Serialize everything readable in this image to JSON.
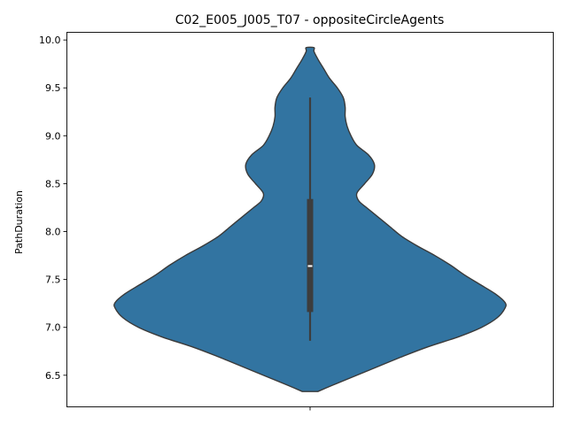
{
  "chart_data": {
    "type": "violin",
    "title": "C02_E005_J005_T07 - oppositeCircleAgents",
    "xlabel": "",
    "ylabel": "PathDuration",
    "ylim": [
      6.17,
      10.08
    ],
    "yticks": [
      6.5,
      7.0,
      7.5,
      8.0,
      8.5,
      9.0,
      9.5,
      10.0
    ],
    "ytick_labels": [
      "6.5",
      "7.0",
      "7.5",
      "8.0",
      "8.5",
      "9.0",
      "9.5",
      "10.0"
    ],
    "grid": false,
    "fill_color": "#3274a1",
    "edge_color": "#3a3a3a",
    "box_color": "#3d3d3d",
    "median_color": "#ffffff",
    "summary": {
      "whisker_low": 6.86,
      "q1": 7.16,
      "median": 7.64,
      "q3": 8.34,
      "whisker_high": 9.4
    },
    "density": {
      "y": [
        6.33,
        6.4,
        6.55,
        6.7,
        6.8,
        6.9,
        7.0,
        7.1,
        7.2,
        7.26,
        7.35,
        7.45,
        7.55,
        7.65,
        7.75,
        7.85,
        7.95,
        8.05,
        8.15,
        8.25,
        8.32,
        8.4,
        8.5,
        8.6,
        8.7,
        8.8,
        8.9,
        9.0,
        9.1,
        9.2,
        9.3,
        9.4,
        9.5,
        9.6,
        9.7,
        9.8,
        9.88,
        9.92
      ],
      "width": [
        0.04,
        0.12,
        0.3,
        0.48,
        0.61,
        0.76,
        0.88,
        0.96,
        1.0,
        1.0,
        0.95,
        0.87,
        0.79,
        0.72,
        0.64,
        0.55,
        0.47,
        0.41,
        0.35,
        0.29,
        0.25,
        0.24,
        0.28,
        0.32,
        0.33,
        0.3,
        0.24,
        0.21,
        0.19,
        0.18,
        0.18,
        0.17,
        0.14,
        0.1,
        0.07,
        0.04,
        0.02,
        0.02
      ]
    }
  }
}
